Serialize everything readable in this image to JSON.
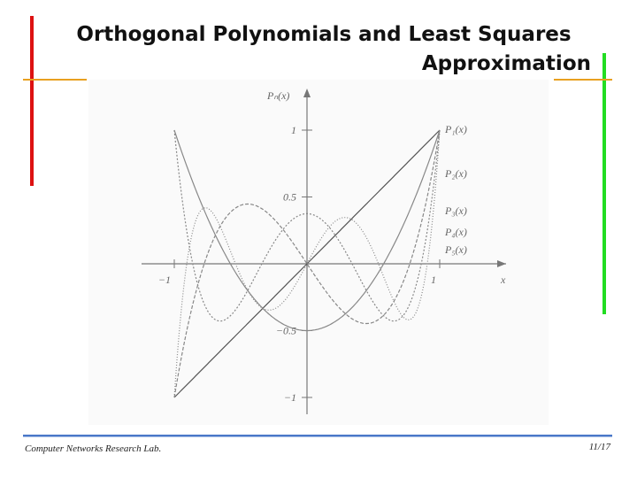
{
  "header": {
    "title_line1": "Orthogonal Polynomials and Least Squares",
    "title_line2": "Approximation"
  },
  "figure": {
    "y_axis_label": "Pₙ(x)",
    "x_axis_label": "x",
    "y_tick_labels": [
      "1",
      "0.5",
      "−0.5",
      "−1"
    ],
    "x_tick_labels": [
      "−1",
      "1"
    ],
    "curve_labels": [
      "P₁(x)",
      "P₂(x)",
      "P₃(x)",
      "P₄(x)",
      "P₅(x)"
    ]
  },
  "footer": {
    "lab": "Computer Networks Research Lab.",
    "page": "11/17"
  }
}
